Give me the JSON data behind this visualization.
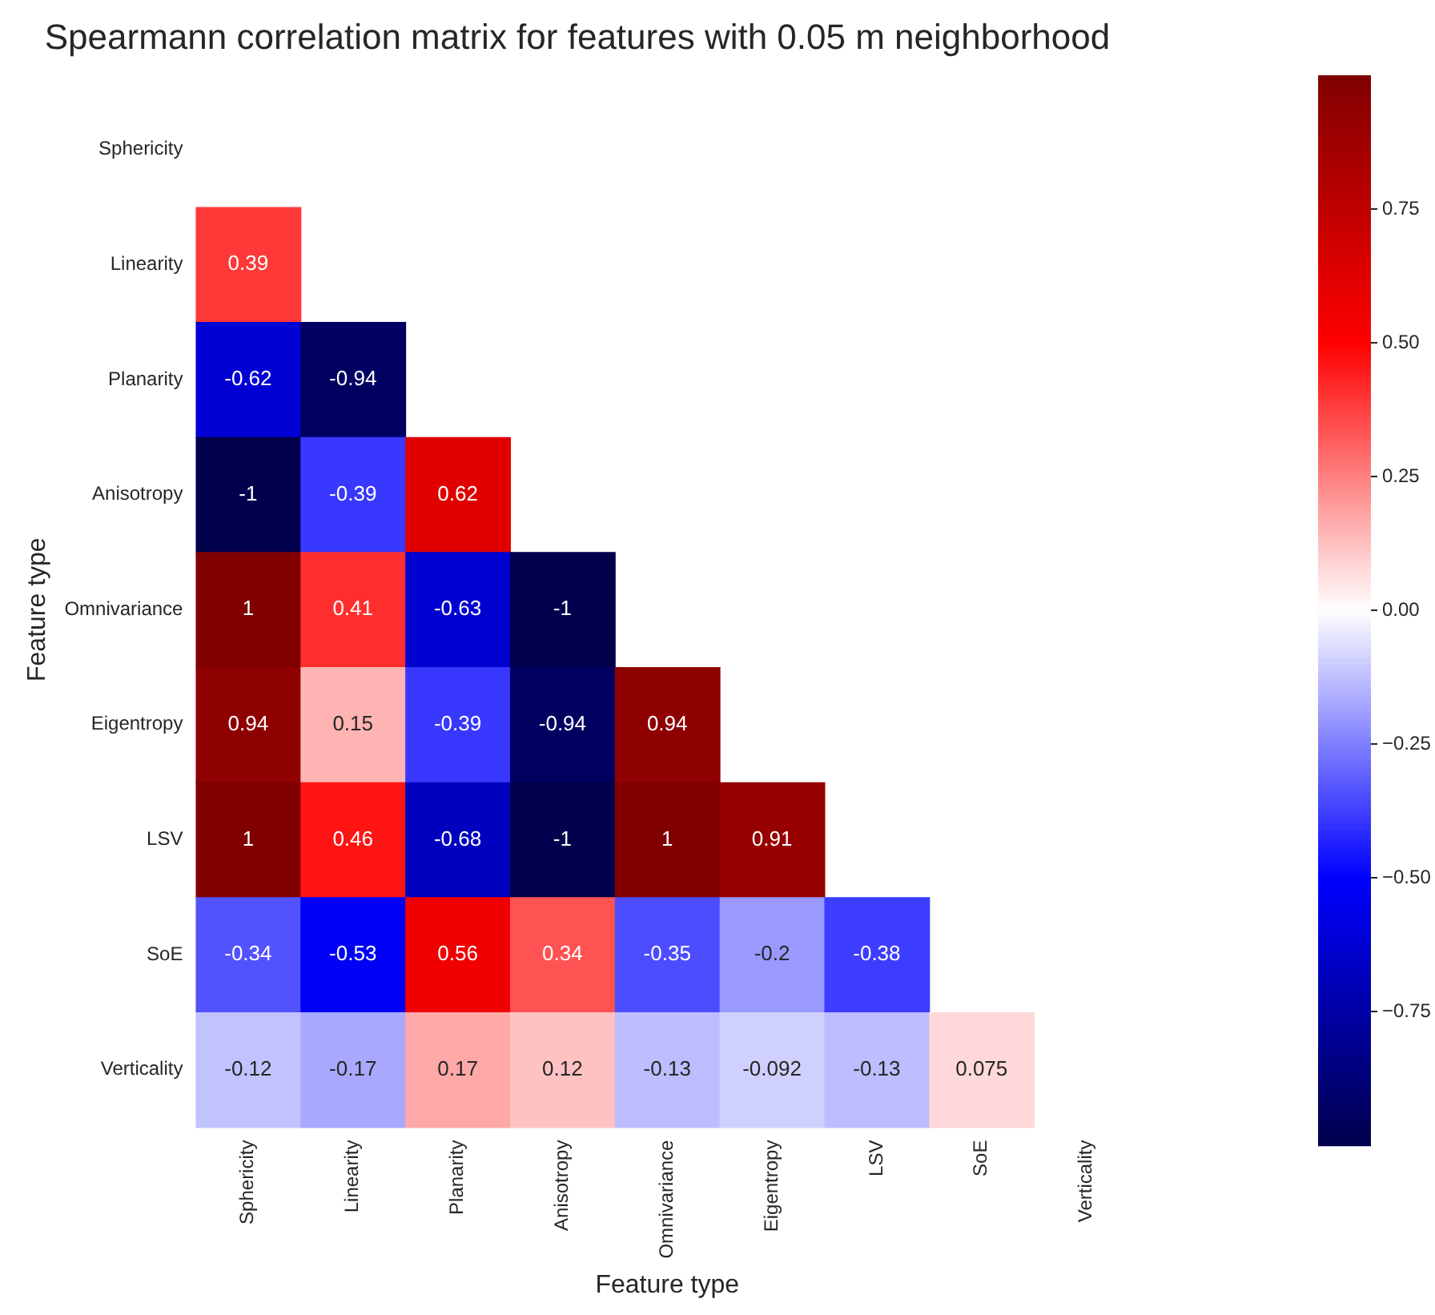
{
  "chart_data": {
    "type": "heatmap",
    "title": "Spearmann correlation matrix for features with 0.05 m neighborhood",
    "xlabel": "Feature type",
    "ylabel": "Feature type",
    "categories": [
      "Sphericity",
      "Linearity",
      "Planarity",
      "Anisotropy",
      "Omnivariance",
      "Eigentropy",
      "LSV",
      "SoE",
      "Verticality"
    ],
    "y_categories": [
      "Sphericity",
      "Linearity",
      "Planarity",
      "Anisotropy",
      "Omnivariance",
      "Eigentropy",
      "LSV",
      "SoE",
      "Verticality"
    ],
    "cells": [
      [
        null,
        null,
        null,
        null,
        null,
        null,
        null,
        null,
        null
      ],
      [
        0.39,
        null,
        null,
        null,
        null,
        null,
        null,
        null,
        null
      ],
      [
        -0.62,
        -0.94,
        null,
        null,
        null,
        null,
        null,
        null,
        null
      ],
      [
        -1,
        -0.39,
        0.62,
        null,
        null,
        null,
        null,
        null,
        null
      ],
      [
        1,
        0.41,
        -0.63,
        -1,
        null,
        null,
        null,
        null,
        null
      ],
      [
        0.94,
        0.15,
        -0.39,
        -0.94,
        0.94,
        null,
        null,
        null,
        null
      ],
      [
        1,
        0.46,
        -0.68,
        -1,
        1,
        0.91,
        null,
        null,
        null
      ],
      [
        -0.34,
        -0.53,
        0.56,
        0.34,
        -0.35,
        -0.2,
        -0.38,
        null,
        null
      ],
      [
        -0.12,
        -0.17,
        0.17,
        0.12,
        -0.13,
        -0.092,
        -0.13,
        0.075,
        null
      ]
    ],
    "data_labels": true,
    "clim": [
      -1,
      1
    ],
    "cticks": [
      {
        "value": -0.75,
        "label": "−0.75"
      },
      {
        "value": -0.5,
        "label": "−0.50"
      },
      {
        "value": -0.25,
        "label": "−0.25"
      },
      {
        "value": 0,
        "label": "0.00"
      },
      {
        "value": 0.25,
        "label": "0.25"
      },
      {
        "value": 0.5,
        "label": "0.50"
      },
      {
        "value": 0.75,
        "label": "0.75"
      }
    ]
  }
}
